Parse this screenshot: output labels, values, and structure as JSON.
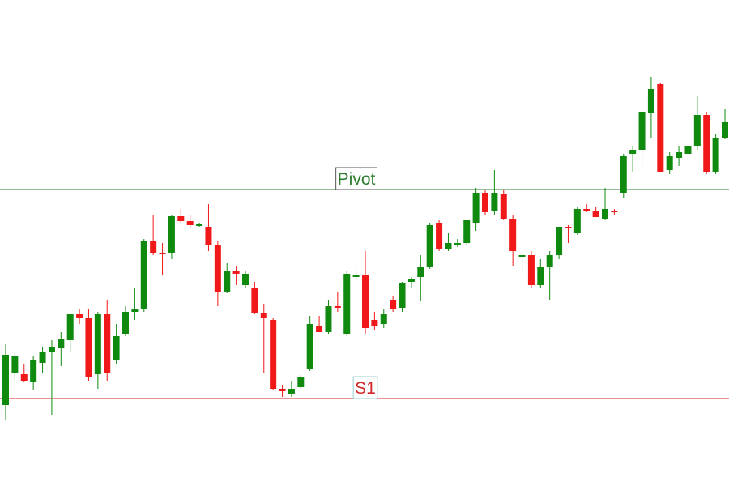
{
  "chart_data": {
    "type": "candlestick",
    "ylim": [
      0,
      600
    ],
    "up_color": "#0f8a0f",
    "down_color": "#f01818",
    "open": [
      100,
      140,
      138,
      128,
      152,
      165,
      170,
      180,
      212,
      208,
      138,
      212,
      155,
      188,
      215,
      218,
      303,
      288,
      288,
      333,
      327,
      322,
      320,
      297,
      240,
      265,
      248,
      245,
      213,
      205,
      120,
      113,
      122,
      145,
      198,
      190,
      222,
      188,
      258,
      260,
      205,
      200,
      230,
      220,
      252,
      258,
      270,
      325,
      292,
      298,
      300,
      325,
      362,
      340,
      360,
      330,
      285,
      285,
      248,
      270,
      285,
      320,
      312,
      342,
      340,
      330,
      340,
      362,
      410,
      415,
      460,
      496,
      390,
      405,
      410,
      420,
      458,
      388,
      430
    ],
    "high": [
      175,
      165,
      150,
      160,
      172,
      180,
      190,
      212,
      218,
      218,
      215,
      230,
      200,
      222,
      245,
      305,
      335,
      300,
      335,
      342,
      335,
      325,
      348,
      302,
      275,
      272,
      265,
      252,
      225,
      208,
      125,
      130,
      137,
      210,
      210,
      230,
      240,
      265,
      265,
      290,
      215,
      218,
      235,
      252,
      258,
      285,
      325,
      328,
      312,
      305,
      328,
      368,
      365,
      390,
      365,
      335,
      290,
      290,
      280,
      290,
      320,
      322,
      345,
      348,
      345,
      368,
      342,
      410,
      420,
      462,
      505,
      497,
      412,
      420,
      420,
      482,
      462,
      435,
      465
    ],
    "low": [
      82,
      130,
      128,
      118,
      140,
      88,
      148,
      165,
      200,
      130,
      120,
      130,
      150,
      185,
      205,
      215,
      285,
      260,
      280,
      325,
      318,
      320,
      290,
      222,
      238,
      248,
      245,
      212,
      140,
      118,
      110,
      110,
      120,
      142,
      190,
      188,
      215,
      185,
      255,
      188,
      192,
      195,
      215,
      215,
      245,
      228,
      268,
      290,
      290,
      295,
      298,
      315,
      335,
      335,
      328,
      272,
      262,
      245,
      245,
      230,
      280,
      300,
      310,
      338,
      332,
      328,
      335,
      355,
      388,
      395,
      430,
      388,
      385,
      395,
      400,
      415,
      385,
      385,
      428
    ],
    "close": [
      162,
      160,
      130,
      155,
      165,
      172,
      182,
      212,
      208,
      135,
      212,
      140,
      185,
      215,
      218,
      303,
      288,
      287,
      333,
      327,
      322,
      323,
      297,
      240,
      265,
      262,
      262,
      213,
      208,
      120,
      117,
      120,
      135,
      200,
      190,
      222,
      220,
      262,
      260,
      195,
      198,
      212,
      218,
      250,
      255,
      270,
      322,
      292,
      300,
      300,
      328,
      362,
      338,
      362,
      330,
      290,
      285,
      248,
      270,
      285,
      320,
      318,
      342,
      340,
      332,
      342,
      338,
      408,
      415,
      462,
      490,
      388,
      408,
      412,
      420,
      458,
      388,
      430,
      450
    ],
    "levels": [
      {
        "label": "Pivot",
        "value": 366,
        "color": "#2e7d2e"
      },
      {
        "label": "S1",
        "value": 108,
        "color": "#d02828"
      }
    ]
  }
}
